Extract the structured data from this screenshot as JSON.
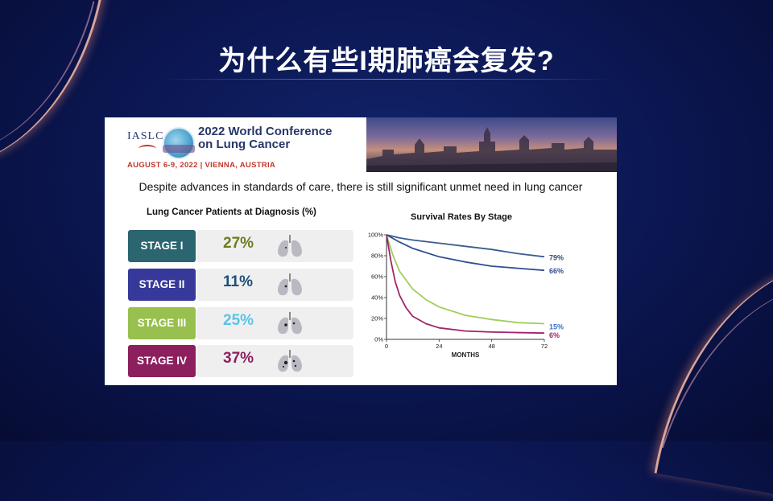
{
  "slide": {
    "title": "为什么有些I期肺癌会复发?"
  },
  "header": {
    "org": "IASLC",
    "conference_line1": "2022 World Conference",
    "conference_line2": "on Lung Cancer",
    "date_location": "AUGUST 6-9, 2022 | VIENNA, AUSTRIA"
  },
  "subtitle": "Despite advances in standards of care, there is still significant unmet need in lung cancer",
  "diagnosis": {
    "heading": "Lung Cancer Patients at Diagnosis (%)",
    "stages": [
      {
        "label": "STAGE I",
        "percent": "27%",
        "label_color": "#2b6570",
        "percent_color": "#6d7b1e",
        "icon": "lung-icon"
      },
      {
        "label": "STAGE II",
        "percent": "11%",
        "label_color": "#37399a",
        "percent_color": "#1e4f78",
        "icon": "lung-icon"
      },
      {
        "label": "STAGE III",
        "percent": "25%",
        "label_color": "#97c04e",
        "percent_color": "#5cc3e6",
        "icon": "lung-icon"
      },
      {
        "label": "STAGE IV",
        "percent": "37%",
        "label_color": "#8c1f5e",
        "percent_color": "#8c1f5e",
        "icon": "lung-icon"
      }
    ]
  },
  "chart_data": {
    "type": "line",
    "title": "Survival Rates By Stage",
    "xlabel": "MONTHS",
    "ylabel": "",
    "xlim": [
      0,
      72
    ],
    "ylim": [
      0,
      100
    ],
    "x_ticks": [
      "0",
      "24",
      "48",
      "72"
    ],
    "y_ticks": [
      "0%",
      "20%",
      "40%",
      "60%",
      "80%",
      "100%"
    ],
    "grid": false,
    "series": [
      {
        "color": "#3b5c8f",
        "end_label": "79%",
        "label_color": "#3b4a6a",
        "x": [
          0,
          6,
          12,
          24,
          36,
          48,
          60,
          72
        ],
        "y": [
          100,
          97,
          95,
          92,
          89,
          86,
          82,
          79
        ]
      },
      {
        "color": "#2f4f94",
        "end_label": "66%",
        "label_color": "#2f4f94",
        "x": [
          0,
          6,
          12,
          24,
          36,
          48,
          60,
          72
        ],
        "y": [
          100,
          93,
          87,
          79,
          74,
          70,
          68,
          66
        ]
      },
      {
        "color": "#9fcf5a",
        "end_label": "15%",
        "label_color": "#3a6fc4",
        "x": [
          0,
          3,
          6,
          12,
          18,
          24,
          36,
          48,
          60,
          72
        ],
        "y": [
          100,
          80,
          65,
          48,
          38,
          31,
          23,
          19,
          16,
          15
        ]
      },
      {
        "color": "#a0246b",
        "end_label": "6%",
        "label_color": "#a0246b",
        "x": [
          0,
          2,
          4,
          6,
          9,
          12,
          18,
          24,
          36,
          48,
          60,
          72
        ],
        "y": [
          100,
          75,
          55,
          42,
          30,
          22,
          15,
          11,
          8,
          7,
          6.5,
          6
        ]
      }
    ]
  }
}
